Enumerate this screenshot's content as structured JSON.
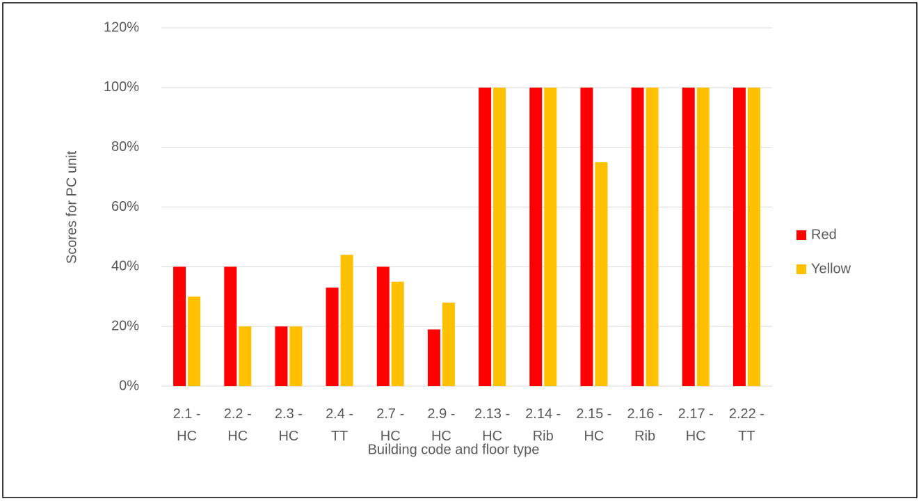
{
  "chart_data": {
    "type": "bar",
    "x_label": "Building code and floor type",
    "y_label": "Scores for PC unit",
    "categories": [
      "2.1 - HC",
      "2.2 - HC",
      "2.3 - HC",
      "2.4 - TT",
      "2.7 - HC",
      "2.9 - HC",
      "2.13 - HC",
      "2.14 - Rib",
      "2.15 - HC",
      "2.16 - Rib",
      "2.17 - HC",
      "2.22 - TT"
    ],
    "series": [
      {
        "name": "Red",
        "color": "#ff0000",
        "values": [
          40,
          40,
          20,
          33,
          40,
          19,
          100,
          100,
          100,
          100,
          100,
          100
        ]
      },
      {
        "name": "Yellow",
        "color": "#ffc000",
        "values": [
          30,
          20,
          20,
          44,
          35,
          28,
          100,
          100,
          75,
          100,
          100,
          100
        ]
      }
    ],
    "ylim": [
      0,
      120
    ],
    "yticks": [
      {
        "value": 0,
        "label": "0%"
      },
      {
        "value": 20,
        "label": "20%"
      },
      {
        "value": 40,
        "label": "40%"
      },
      {
        "value": 60,
        "label": "60%"
      },
      {
        "value": 80,
        "label": "80%"
      },
      {
        "value": 100,
        "label": "100%"
      },
      {
        "value": 120,
        "label": "120%"
      }
    ],
    "grid": true,
    "legend": "right"
  }
}
